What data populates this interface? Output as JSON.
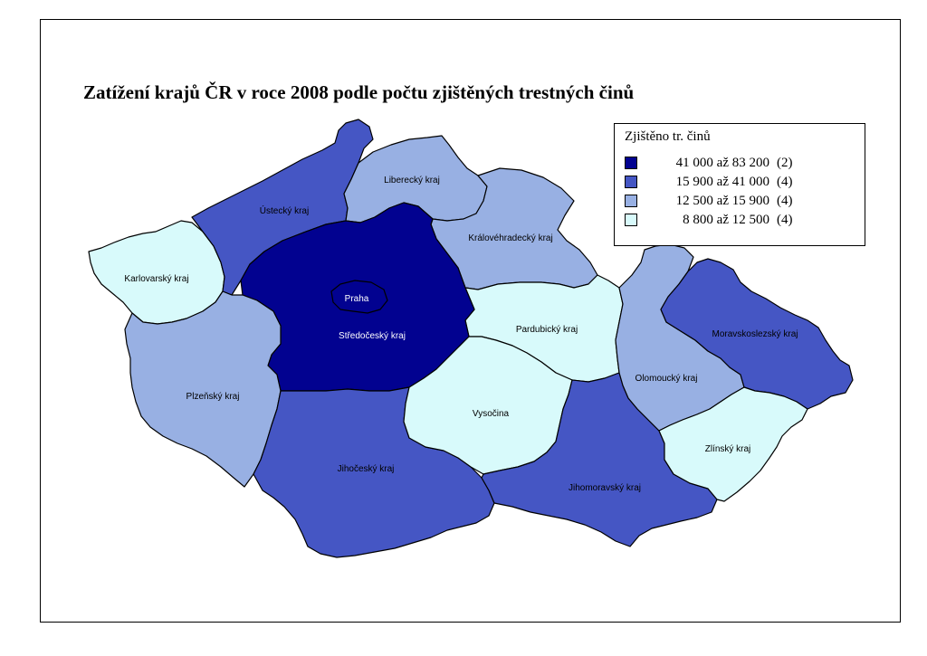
{
  "title": "Zatížení krajů ČR v roce 2008 podle počtu zjištěných trestných činů",
  "colors": {
    "class1": "#020290",
    "class2": "#4556c4",
    "class3": "#98b0e3",
    "class4": "#d8fafb",
    "border": "#000000"
  },
  "legend": {
    "title": "Zjištěno tr. činů",
    "classes": [
      {
        "range": "41 000 až 83 200",
        "count": "(2)",
        "color_key": "class1"
      },
      {
        "range": "15 900 až 41 000",
        "count": "(4)",
        "color_key": "class2"
      },
      {
        "range": "12 500 až 15 900",
        "count": "(4)",
        "color_key": "class3"
      },
      {
        "range": "8 800 až 12 500",
        "count": "(4)",
        "color_key": "class4"
      }
    ]
  },
  "regions": [
    {
      "id": "karlovarsky",
      "label": "Karlovarský kraj",
      "class": "class4"
    },
    {
      "id": "ustecky",
      "label": "Ústecký kraj",
      "class": "class2"
    },
    {
      "id": "liberecky",
      "label": "Liberecký kraj",
      "class": "class3"
    },
    {
      "id": "kralovehradecky",
      "label": "Královéhradecký kraj",
      "class": "class3"
    },
    {
      "id": "pardubicky",
      "label": "Pardubický kraj",
      "class": "class4"
    },
    {
      "id": "stredocesky",
      "label": "Středočeský kraj",
      "class": "class1"
    },
    {
      "id": "praha",
      "label": "Praha",
      "class": "class1"
    },
    {
      "id": "plzensky",
      "label": "Plzeňský kraj",
      "class": "class3"
    },
    {
      "id": "jihocesky",
      "label": "Jihočeský kraj",
      "class": "class2"
    },
    {
      "id": "vysocina",
      "label": "Vysočina",
      "class": "class4"
    },
    {
      "id": "jihomoravsky",
      "label": "Jihomoravský kraj",
      "class": "class2"
    },
    {
      "id": "olomoucky",
      "label": "Olomoucký kraj",
      "class": "class3"
    },
    {
      "id": "moravskoslezsky",
      "label": "Moravskoslezský kraj",
      "class": "class2"
    },
    {
      "id": "zlinsky",
      "label": "Zlínský kraj",
      "class": "class4"
    }
  ]
}
